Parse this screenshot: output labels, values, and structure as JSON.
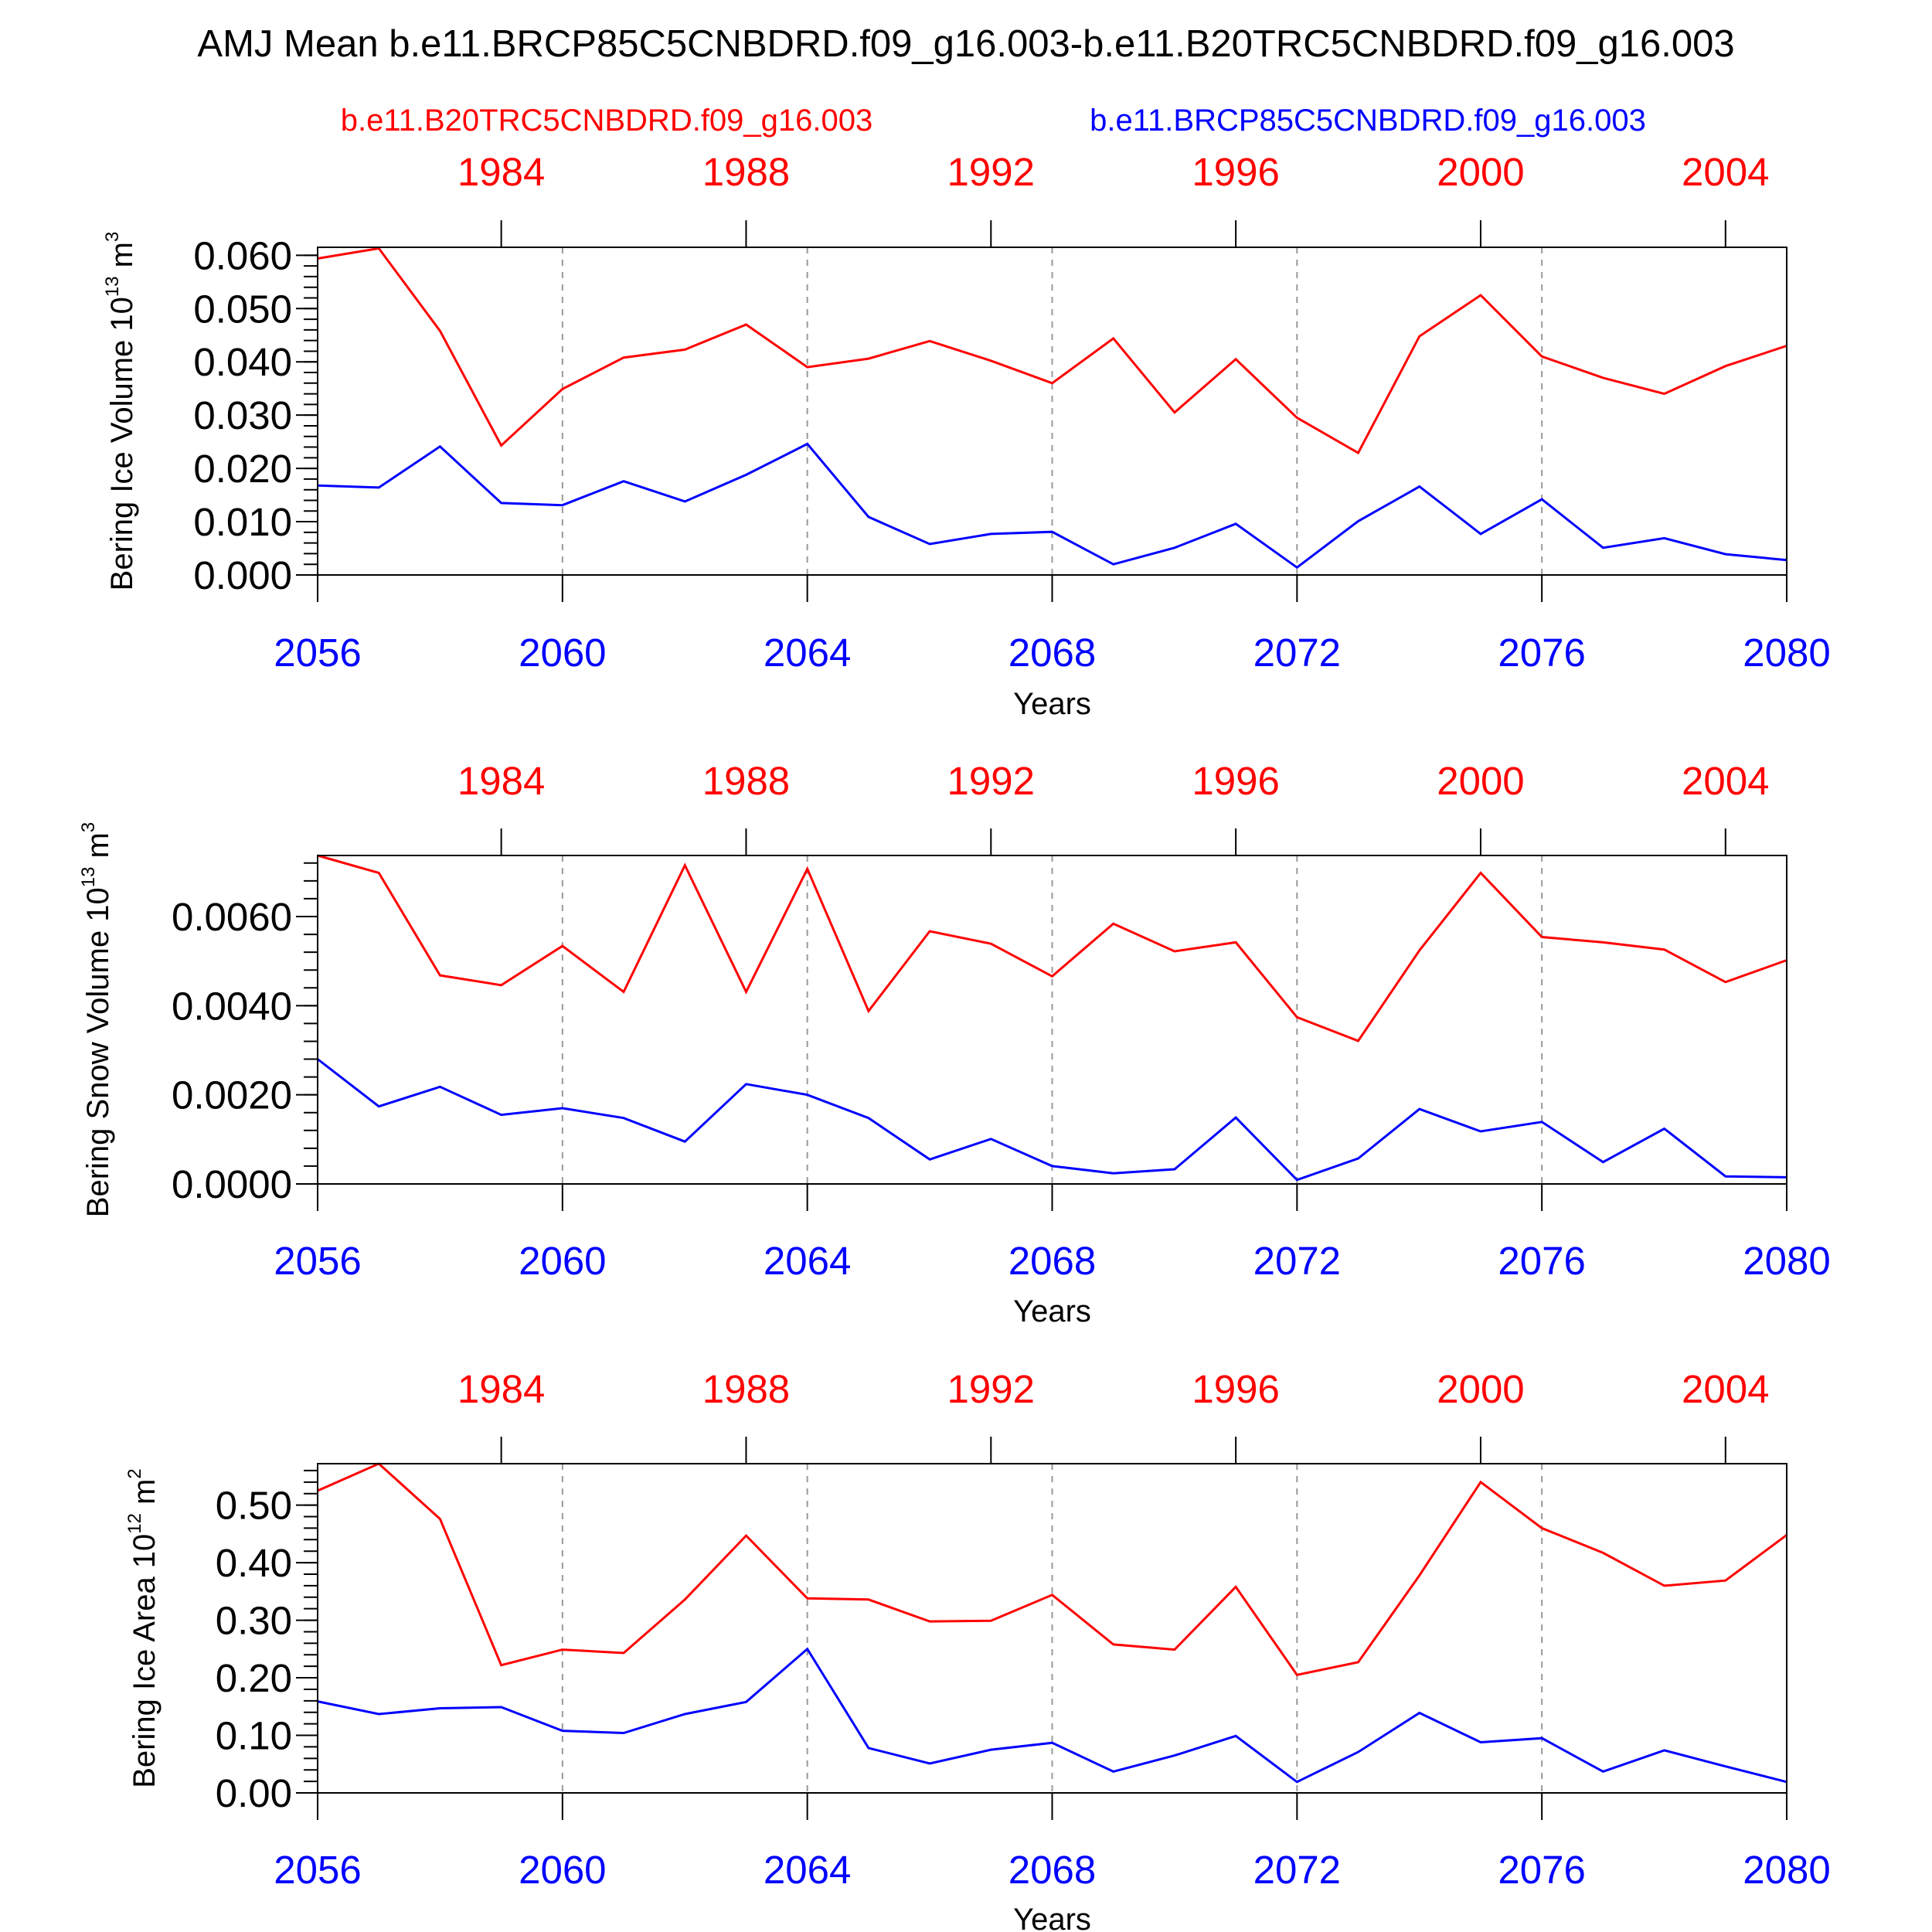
{
  "title": "AMJ Mean b.e11.BRCP85C5CNBDRD.f09_g16.003-b.e11.B20TRC5CNBDRD.f09_g16.003",
  "legend": {
    "left": "b.e11.B20TRC5CNBDRD.f09_g16.003",
    "right": "b.e11.BRCP85C5CNBDRD.f09_g16.003"
  },
  "colors": {
    "historical": "#ff0000",
    "future": "#0000ff",
    "axis": "#000000",
    "grid": "#999999"
  },
  "chart_data": [
    {
      "type": "line",
      "ylabel": {
        "text": "Bering Ice Volume 10",
        "exp": "13",
        "unit": " m",
        "unit_exp": "3"
      },
      "xlabel": "Years",
      "xlim": [
        2056,
        2080
      ],
      "ylim": [
        0.0,
        0.0615
      ],
      "yticks": [
        0.0,
        0.01,
        0.02,
        0.03,
        0.04,
        0.05,
        0.06
      ],
      "ytick_labels": [
        "0.000",
        "0.010",
        "0.020",
        "0.030",
        "0.040",
        "0.050",
        "0.060"
      ],
      "yminor_step": 0.002,
      "xticks": [
        2056,
        2060,
        2064,
        2068,
        2072,
        2076,
        2080
      ],
      "xtick_labels": [
        "2056",
        "2060",
        "2064",
        "2068",
        "2072",
        "2076",
        "2080"
      ],
      "top_axis": {
        "ticks": [
          1984,
          1988,
          1992,
          1996,
          2000,
          2004
        ],
        "labels": [
          "1984",
          "1988",
          "1992",
          "1996",
          "2000",
          "2004"
        ],
        "offset_years": 75
      },
      "grid_x": [
        2060,
        2064,
        2068,
        2072,
        2076
      ],
      "x": [
        2056,
        2057,
        2058,
        2059,
        2060,
        2061,
        2062,
        2063,
        2064,
        2065,
        2066,
        2067,
        2068,
        2069,
        2070,
        2071,
        2072,
        2073,
        2074,
        2075,
        2076,
        2077,
        2078,
        2079,
        2080
      ],
      "series": [
        {
          "name": "b.e11.B20TRC5CNBDRD.f09_g16.003",
          "color": "#ff0000",
          "values": [
            0.0594,
            0.0613,
            0.0458,
            0.0243,
            0.0349,
            0.0408,
            0.0423,
            0.047,
            0.039,
            0.0406,
            0.0439,
            0.0402,
            0.036,
            0.0444,
            0.0305,
            0.0405,
            0.0295,
            0.0229,
            0.0448,
            0.0525,
            0.041,
            0.037,
            0.034,
            0.0392,
            0.043
          ]
        },
        {
          "name": "b.e11.BRCP85C5CNBDRD.f09_g16.003",
          "color": "#0000ff",
          "values": [
            0.0168,
            0.0164,
            0.0241,
            0.0135,
            0.0131,
            0.0176,
            0.0138,
            0.0188,
            0.0246,
            0.0109,
            0.0058,
            0.0077,
            0.0081,
            0.002,
            0.0051,
            0.0096,
            0.0014,
            0.0101,
            0.0166,
            0.0077,
            0.0142,
            0.0051,
            0.0069,
            0.0039,
            0.0028
          ]
        }
      ]
    },
    {
      "type": "line",
      "ylabel": {
        "text": "Bering Snow Volume 10",
        "exp": "13",
        "unit": " m",
        "unit_exp": "3"
      },
      "xlabel": "Years",
      "xlim": [
        2056,
        2080
      ],
      "ylim": [
        0.0,
        0.00737
      ],
      "yticks": [
        0.0,
        0.002,
        0.004,
        0.006
      ],
      "ytick_labels": [
        "0.0000",
        "0.0020",
        "0.0040",
        "0.0060"
      ],
      "yminor_step": 0.0004,
      "xticks": [
        2056,
        2060,
        2064,
        2068,
        2072,
        2076,
        2080
      ],
      "xtick_labels": [
        "2056",
        "2060",
        "2064",
        "2068",
        "2072",
        "2076",
        "2080"
      ],
      "top_axis": {
        "ticks": [
          1984,
          1988,
          1992,
          1996,
          2000,
          2004
        ],
        "labels": [
          "1984",
          "1988",
          "1992",
          "1996",
          "2000",
          "2004"
        ],
        "offset_years": 75
      },
      "grid_x": [
        2060,
        2064,
        2068,
        2072,
        2076
      ],
      "x": [
        2056,
        2057,
        2058,
        2059,
        2060,
        2061,
        2062,
        2063,
        2064,
        2065,
        2066,
        2067,
        2068,
        2069,
        2070,
        2071,
        2072,
        2073,
        2074,
        2075,
        2076,
        2077,
        2078,
        2079,
        2080
      ],
      "series": [
        {
          "name": "b.e11.B20TRC5CNBDRD.f09_g16.003",
          "color": "#ff0000",
          "values": [
            0.00737,
            0.00698,
            0.00468,
            0.00446,
            0.00534,
            0.00431,
            0.00715,
            0.00431,
            0.00707,
            0.00388,
            0.00567,
            0.00539,
            0.00466,
            0.00584,
            0.00522,
            0.00542,
            0.00374,
            0.00321,
            0.00524,
            0.00698,
            0.00554,
            0.00542,
            0.00526,
            0.00453,
            0.00502
          ]
        },
        {
          "name": "b.e11.BRCP85C5CNBDRD.f09_g16.003",
          "color": "#0000ff",
          "values": [
            0.0028,
            0.00174,
            0.00218,
            0.00155,
            0.0017,
            0.00148,
            0.00095,
            0.00224,
            0.002,
            0.00148,
            0.00055,
            0.00101,
            0.0004,
            0.00024,
            0.00033,
            0.00149,
            9e-05,
            0.00057,
            0.00168,
            0.00118,
            0.00139,
            0.00049,
            0.00124,
            0.00017,
            0.00015
          ]
        }
      ]
    },
    {
      "type": "line",
      "ylabel": {
        "text": "Bering Ice Area 10",
        "exp": "12",
        "unit": " m",
        "unit_exp": "2"
      },
      "xlabel": "Years",
      "xlim": [
        2056,
        2080
      ],
      "ylim": [
        0.0,
        0.572
      ],
      "yticks": [
        0.0,
        0.1,
        0.2,
        0.3,
        0.4,
        0.5
      ],
      "ytick_labels": [
        "0.00",
        "0.10",
        "0.20",
        "0.30",
        "0.40",
        "0.50"
      ],
      "yminor_step": 0.02,
      "xticks": [
        2056,
        2060,
        2064,
        2068,
        2072,
        2076,
        2080
      ],
      "xtick_labels": [
        "2056",
        "2060",
        "2064",
        "2068",
        "2072",
        "2076",
        "2080"
      ],
      "top_axis": {
        "ticks": [
          1984,
          1988,
          1992,
          1996,
          2000,
          2004
        ],
        "labels": [
          "1984",
          "1988",
          "1992",
          "1996",
          "2000",
          "2004"
        ],
        "offset_years": 75
      },
      "grid_x": [
        2060,
        2064,
        2068,
        2072,
        2076
      ],
      "x": [
        2056,
        2057,
        2058,
        2059,
        2060,
        2061,
        2062,
        2063,
        2064,
        2065,
        2066,
        2067,
        2068,
        2069,
        2070,
        2071,
        2072,
        2073,
        2074,
        2075,
        2076,
        2077,
        2078,
        2079,
        2080
      ],
      "series": [
        {
          "name": "b.e11.B20TRC5CNBDRD.f09_g16.003",
          "color": "#ff0000",
          "values": [
            0.525,
            0.572,
            0.476,
            0.222,
            0.249,
            0.243,
            0.336,
            0.447,
            0.338,
            0.336,
            0.298,
            0.299,
            0.344,
            0.258,
            0.249,
            0.358,
            0.205,
            0.227,
            0.378,
            0.54,
            0.46,
            0.417,
            0.36,
            0.369,
            0.448
          ]
        },
        {
          "name": "b.e11.BRCP85C5CNBDRD.f09_g16.003",
          "color": "#0000ff",
          "values": [
            0.159,
            0.137,
            0.147,
            0.149,
            0.108,
            0.104,
            0.137,
            0.158,
            0.25,
            0.078,
            0.051,
            0.075,
            0.087,
            0.037,
            0.065,
            0.099,
            0.019,
            0.071,
            0.139,
            0.088,
            0.095,
            0.037,
            0.074,
            0.046,
            0.019
          ]
        }
      ]
    }
  ]
}
